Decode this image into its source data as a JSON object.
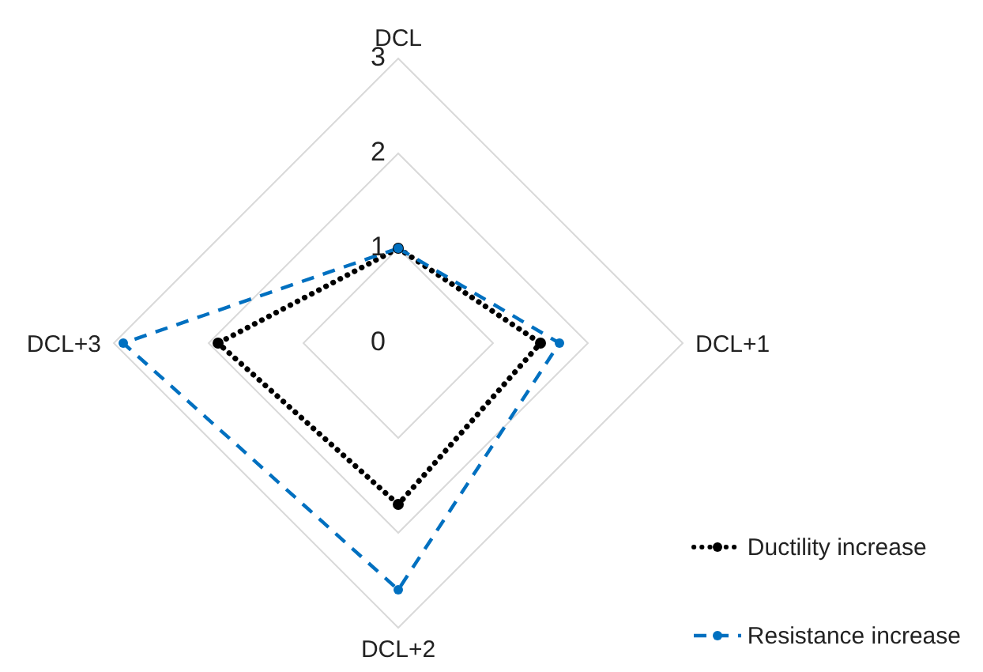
{
  "chart_data": {
    "type": "radar",
    "categories": [
      "DCL",
      "DCL+1",
      "DCL+2",
      "DCL+3"
    ],
    "series": [
      {
        "name": "Ductility increase",
        "color": "#000000",
        "values": [
          1,
          1.5,
          1.7,
          1.9
        ],
        "line_style": "dotted"
      },
      {
        "name": "Resistance increase",
        "color": "#0070c0",
        "values": [
          1,
          1.7,
          2.6,
          2.9
        ],
        "line_style": "dashed"
      }
    ],
    "ylim": [
      0,
      3
    ],
    "yticks": [
      0,
      1,
      2,
      3
    ],
    "grid": true,
    "legend": "bottom right",
    "marker": "circle"
  }
}
